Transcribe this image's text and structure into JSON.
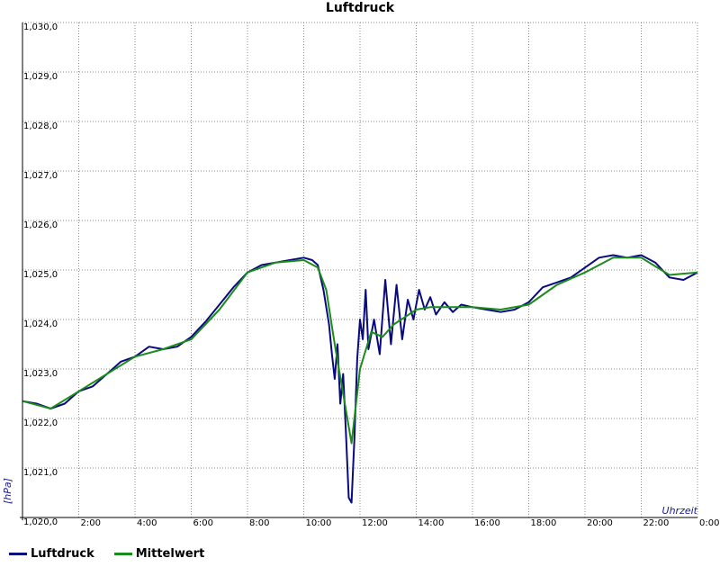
{
  "chart_data": {
    "type": "line",
    "title": "Luftdruck",
    "xlabel": "Uhrzeit",
    "ylabel": "[hPa]",
    "ylim": [
      1020.0,
      1030.0
    ],
    "xlim": [
      0,
      24
    ],
    "y_ticks": [
      "1,020,0",
      "1,021,0",
      "1,022,0",
      "1,023,0",
      "1,024,0",
      "1,025,0",
      "1,026,0",
      "1,027,0",
      "1,028,0",
      "1,029,0",
      "1,030,0"
    ],
    "x_ticks": [
      "2:00",
      "4:00",
      "6:00",
      "8:00",
      "10:00",
      "12:00",
      "14:00",
      "16:00",
      "18:00",
      "20:00",
      "22:00",
      "0:00"
    ],
    "grid": true,
    "legend_position": "bottom-left",
    "colors": {
      "Luftdruck": "#0a0a80",
      "Mittelwert": "#1a8c1a"
    },
    "series": [
      {
        "name": "Luftdruck",
        "x": [
          0,
          0.5,
          1.0,
          1.5,
          2.0,
          2.5,
          3.0,
          3.5,
          4.0,
          4.5,
          5.0,
          5.5,
          6.0,
          6.5,
          7.0,
          7.5,
          8.0,
          8.5,
          9.0,
          9.5,
          10.0,
          10.3,
          10.5,
          10.7,
          10.9,
          11.0,
          11.1,
          11.2,
          11.3,
          11.4,
          11.5,
          11.6,
          11.7,
          11.8,
          11.9,
          12.0,
          12.1,
          12.2,
          12.3,
          12.5,
          12.7,
          12.9,
          13.1,
          13.3,
          13.5,
          13.7,
          13.9,
          14.1,
          14.3,
          14.5,
          14.7,
          15.0,
          15.3,
          15.6,
          16.0,
          16.5,
          17.0,
          17.5,
          18.0,
          18.5,
          19.0,
          19.5,
          20.0,
          20.5,
          21.0,
          21.5,
          22.0,
          22.5,
          23.0,
          23.5,
          24.0
        ],
        "values": [
          1022.35,
          1022.3,
          1022.2,
          1022.3,
          1022.55,
          1022.65,
          1022.9,
          1023.15,
          1023.25,
          1023.45,
          1023.4,
          1023.45,
          1023.65,
          1023.95,
          1024.3,
          1024.65,
          1024.95,
          1025.1,
          1025.15,
          1025.2,
          1025.25,
          1025.2,
          1025.1,
          1024.6,
          1023.9,
          1023.3,
          1022.8,
          1023.5,
          1022.3,
          1022.9,
          1021.7,
          1020.4,
          1020.3,
          1021.6,
          1023.2,
          1024.0,
          1023.6,
          1024.6,
          1023.4,
          1024.0,
          1023.3,
          1024.8,
          1023.5,
          1024.7,
          1023.6,
          1024.4,
          1024.0,
          1024.6,
          1024.2,
          1024.45,
          1024.1,
          1024.35,
          1024.15,
          1024.3,
          1024.25,
          1024.2,
          1024.15,
          1024.2,
          1024.35,
          1024.65,
          1024.75,
          1024.85,
          1025.05,
          1025.25,
          1025.3,
          1025.25,
          1025.3,
          1025.15,
          1024.85,
          1024.8,
          1024.95
        ]
      },
      {
        "name": "Mittelwert",
        "x": [
          0,
          1.0,
          2.0,
          3.0,
          4.0,
          5.0,
          6.0,
          7.0,
          8.0,
          9.0,
          10.0,
          10.5,
          10.8,
          11.1,
          11.4,
          11.7,
          12.0,
          12.4,
          12.8,
          13.2,
          13.6,
          14.0,
          14.5,
          15.0,
          16.0,
          17.0,
          18.0,
          19.0,
          20.0,
          21.0,
          22.0,
          23.0,
          24.0
        ],
        "values": [
          1022.35,
          1022.2,
          1022.55,
          1022.9,
          1023.25,
          1023.4,
          1023.6,
          1024.2,
          1024.95,
          1025.15,
          1025.2,
          1025.05,
          1024.6,
          1023.5,
          1022.5,
          1021.5,
          1023.0,
          1023.75,
          1023.65,
          1023.9,
          1024.05,
          1024.2,
          1024.25,
          1024.25,
          1024.25,
          1024.2,
          1024.3,
          1024.7,
          1024.95,
          1025.25,
          1025.25,
          1024.9,
          1024.95
        ]
      }
    ]
  }
}
